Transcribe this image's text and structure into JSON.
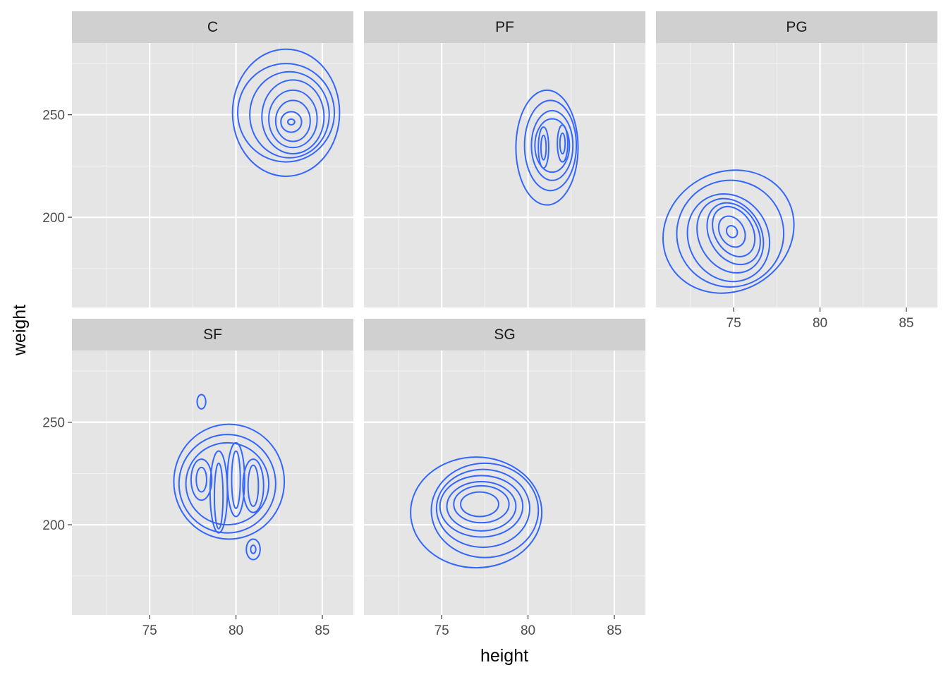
{
  "chart_data": {
    "type": "contour",
    "xlabel": "height",
    "ylabel": "weight",
    "xlim": [
      70.5,
      86.8
    ],
    "ylim": [
      156,
      285
    ],
    "x_ticks": [
      75,
      80,
      85
    ],
    "y_ticks": [
      200,
      250
    ],
    "x_minor": [
      72.5,
      77.5,
      82.5
    ],
    "y_minor": [
      175,
      225,
      275
    ],
    "line_color": "#3366FF",
    "grid": true,
    "panels": [
      {
        "label": "C",
        "contours": [
          {
            "cx": 83.2,
            "cy": 246.5,
            "rx": 0.2,
            "ry": 1.4
          },
          {
            "cx": 83.2,
            "cy": 246.5,
            "rx": 0.6,
            "ry": 5
          },
          {
            "cx": 83.3,
            "cy": 247.0,
            "rx": 1.0,
            "ry": 10
          },
          {
            "cx": 83.3,
            "cy": 248.0,
            "rx": 1.4,
            "ry": 14
          },
          {
            "cx": 83.3,
            "cy": 249.0,
            "rx": 1.8,
            "ry": 18
          },
          {
            "cx": 83.1,
            "cy": 250.0,
            "rx": 2.3,
            "ry": 21
          },
          {
            "cx": 82.9,
            "cy": 251.0,
            "rx": 2.8,
            "ry": 24
          },
          {
            "cx": 82.9,
            "cy": 251.0,
            "rx": 3.1,
            "ry": 31
          }
        ]
      },
      {
        "label": "PF",
        "contours": [
          {
            "cx": 80.9,
            "cy": 234,
            "rx": 0.15,
            "ry": 6
          },
          {
            "cx": 82.0,
            "cy": 236,
            "rx": 0.15,
            "ry": 5
          },
          {
            "cx": 80.9,
            "cy": 234,
            "rx": 0.3,
            "ry": 10
          },
          {
            "cx": 82.0,
            "cy": 236,
            "rx": 0.3,
            "ry": 9
          },
          {
            "cx": 81.4,
            "cy": 235,
            "rx": 1.0,
            "ry": 13
          },
          {
            "cx": 81.4,
            "cy": 235,
            "rx": 1.2,
            "ry": 17
          },
          {
            "cx": 81.3,
            "cy": 235,
            "rx": 1.5,
            "ry": 22
          },
          {
            "cx": 81.1,
            "cy": 234,
            "rx": 1.8,
            "ry": 28
          }
        ]
      },
      {
        "label": "PG",
        "contours": [
          {
            "cx": 74.9,
            "cy": 193,
            "rx": 0.3,
            "ry": 3,
            "rot": -30
          },
          {
            "cx": 74.9,
            "cy": 193,
            "rx": 0.7,
            "ry": 8,
            "rot": -30
          },
          {
            "cx": 75.0,
            "cy": 193,
            "rx": 1.1,
            "ry": 13,
            "rot": -30
          },
          {
            "cx": 75.0,
            "cy": 192,
            "rx": 1.4,
            "ry": 16,
            "rot": -30
          },
          {
            "cx": 74.8,
            "cy": 191,
            "rx": 1.8,
            "ry": 19,
            "rot": -30
          },
          {
            "cx": 74.7,
            "cy": 190,
            "rx": 2.3,
            "ry": 22,
            "rot": -30
          },
          {
            "cx": 74.8,
            "cy": 192,
            "rx": 3.1,
            "ry": 26,
            "rot": -30
          },
          {
            "cx": 74.7,
            "cy": 193,
            "rx": 3.9,
            "ry": 29,
            "rot": -30
          }
        ]
      },
      {
        "label": "SF",
        "contours": [
          {
            "cx": 78.0,
            "cy": 222,
            "rx": 0.3,
            "ry": 6
          },
          {
            "cx": 79.0,
            "cy": 214,
            "rx": 0.25,
            "ry": 16
          },
          {
            "cx": 80.0,
            "cy": 222,
            "rx": 0.25,
            "ry": 14
          },
          {
            "cx": 81.0,
            "cy": 219,
            "rx": 0.3,
            "ry": 10
          },
          {
            "cx": 78.0,
            "cy": 222,
            "rx": 0.6,
            "ry": 10
          },
          {
            "cx": 79.0,
            "cy": 216,
            "rx": 0.5,
            "ry": 20
          },
          {
            "cx": 80.0,
            "cy": 222,
            "rx": 0.5,
            "ry": 18
          },
          {
            "cx": 81.0,
            "cy": 219,
            "rx": 0.6,
            "ry": 13
          },
          {
            "cx": 79.5,
            "cy": 220,
            "rx": 2.4,
            "ry": 20
          },
          {
            "cx": 79.5,
            "cy": 220,
            "rx": 2.8,
            "ry": 24
          },
          {
            "cx": 79.6,
            "cy": 221,
            "rx": 3.2,
            "ry": 28
          },
          {
            "cx": 78.0,
            "cy": 260,
            "rx": 0.25,
            "ry": 3.5
          },
          {
            "cx": 81.0,
            "cy": 188,
            "rx": 0.4,
            "ry": 5
          },
          {
            "cx": 81.0,
            "cy": 188,
            "rx": 0.15,
            "ry": 2
          }
        ]
      },
      {
        "label": "SG",
        "contours": [
          {
            "cx": 77.2,
            "cy": 210,
            "rx": 1.1,
            "ry": 6
          },
          {
            "cx": 77.3,
            "cy": 210,
            "rx": 1.6,
            "ry": 9
          },
          {
            "cx": 77.3,
            "cy": 209,
            "rx": 2.0,
            "ry": 12
          },
          {
            "cx": 77.3,
            "cy": 209,
            "rx": 2.4,
            "ry": 15
          },
          {
            "cx": 77.4,
            "cy": 208,
            "rx": 2.7,
            "ry": 19
          },
          {
            "cx": 77.5,
            "cy": 207,
            "rx": 3.1,
            "ry": 23
          },
          {
            "cx": 77.0,
            "cy": 206,
            "rx": 3.8,
            "ry": 27
          }
        ]
      }
    ]
  }
}
